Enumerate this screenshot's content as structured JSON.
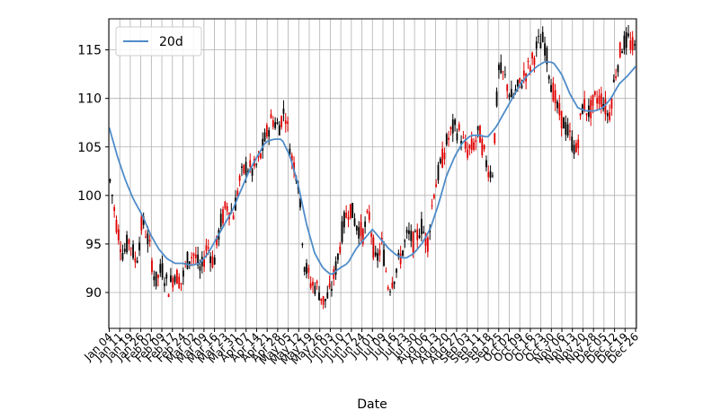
{
  "chart_data": {
    "type": "candlestick",
    "xlabel": "Date",
    "ylabel": "",
    "ylim": [
      86.3,
      118.2
    ],
    "yticks": [
      90,
      95,
      100,
      105,
      110,
      115
    ],
    "grid": true,
    "legend": {
      "position": "top-left",
      "entries": [
        "20d"
      ]
    },
    "series": [
      {
        "name": "20d",
        "kind": "line",
        "color": "#4f8cc9"
      }
    ],
    "x_tick_labels": [
      "Jan 04",
      "Jan 11",
      "Jan 19",
      "Jan 26",
      "Feb 02",
      "Feb 09",
      "Feb 17",
      "Feb 24",
      "Mar 02",
      "Mar 09",
      "Mar 16",
      "Mar 23",
      "Mar 31",
      "Apr 07",
      "Apr 14",
      "Apr 21",
      "Apr 28",
      "May 05",
      "May 12",
      "May 19",
      "May 26",
      "Jun 03",
      "Jun 10",
      "Jun 17",
      "Jun 24",
      "Jul 01",
      "Jul 09",
      "Jul 16",
      "Jul 23",
      "Jul 30",
      "Aug 06",
      "Aug 13",
      "Aug 20",
      "Aug 27",
      "Sep 03",
      "Sep 11",
      "Sep 18",
      "Sep 25",
      "Oct 02",
      "Oct 09",
      "Oct 16",
      "Oct 23",
      "Oct 30",
      "Nov 06",
      "Nov 13",
      "Nov 20",
      "Nov 28",
      "Dec 05",
      "Dec 12",
      "Dec 19",
      "Dec 26"
    ],
    "price_path": [
      101.5,
      97,
      94,
      95.5,
      93,
      97.5,
      95,
      91,
      92.5,
      90.5,
      92,
      91,
      93.5,
      94,
      92,
      95,
      93,
      97,
      99,
      98,
      101.5,
      103,
      102.5,
      103.5,
      106,
      108,
      107,
      109,
      104,
      102,
      93,
      91,
      90.5,
      89,
      90,
      93,
      97,
      99,
      97,
      96,
      98,
      93,
      95,
      90.5,
      92,
      94,
      96,
      95,
      97,
      95,
      100.5,
      103,
      105.5,
      107,
      106.5,
      104.5,
      105,
      106.5,
      103.5,
      102,
      113,
      112,
      110,
      111,
      112.5,
      113.5,
      115.5,
      116,
      112,
      109,
      107.5,
      106,
      104.5,
      109.5,
      108.5,
      110,
      110,
      108,
      112.5,
      115.5,
      116,
      115
    ],
    "ma20_path": [
      107,
      104,
      101.5,
      99.5,
      98,
      96,
      94.5,
      93.5,
      93,
      93,
      92.8,
      93,
      94,
      95.5,
      97,
      98.5,
      100.5,
      102.5,
      104,
      105.5,
      105.8,
      105.8,
      104,
      101,
      97,
      94,
      92.5,
      91.8,
      92.5,
      93,
      94.5,
      95.5,
      96.5,
      95.5,
      94.5,
      93.8,
      93.5,
      94,
      95,
      96.5,
      99,
      102,
      104,
      105.5,
      106.2,
      106.2,
      106,
      107,
      108.5,
      110,
      111.5,
      112.5,
      113.3,
      113.8,
      113.7,
      112.5,
      110.5,
      109,
      108.7,
      108.7,
      109,
      110,
      111.5,
      112.3,
      113.3
    ]
  }
}
